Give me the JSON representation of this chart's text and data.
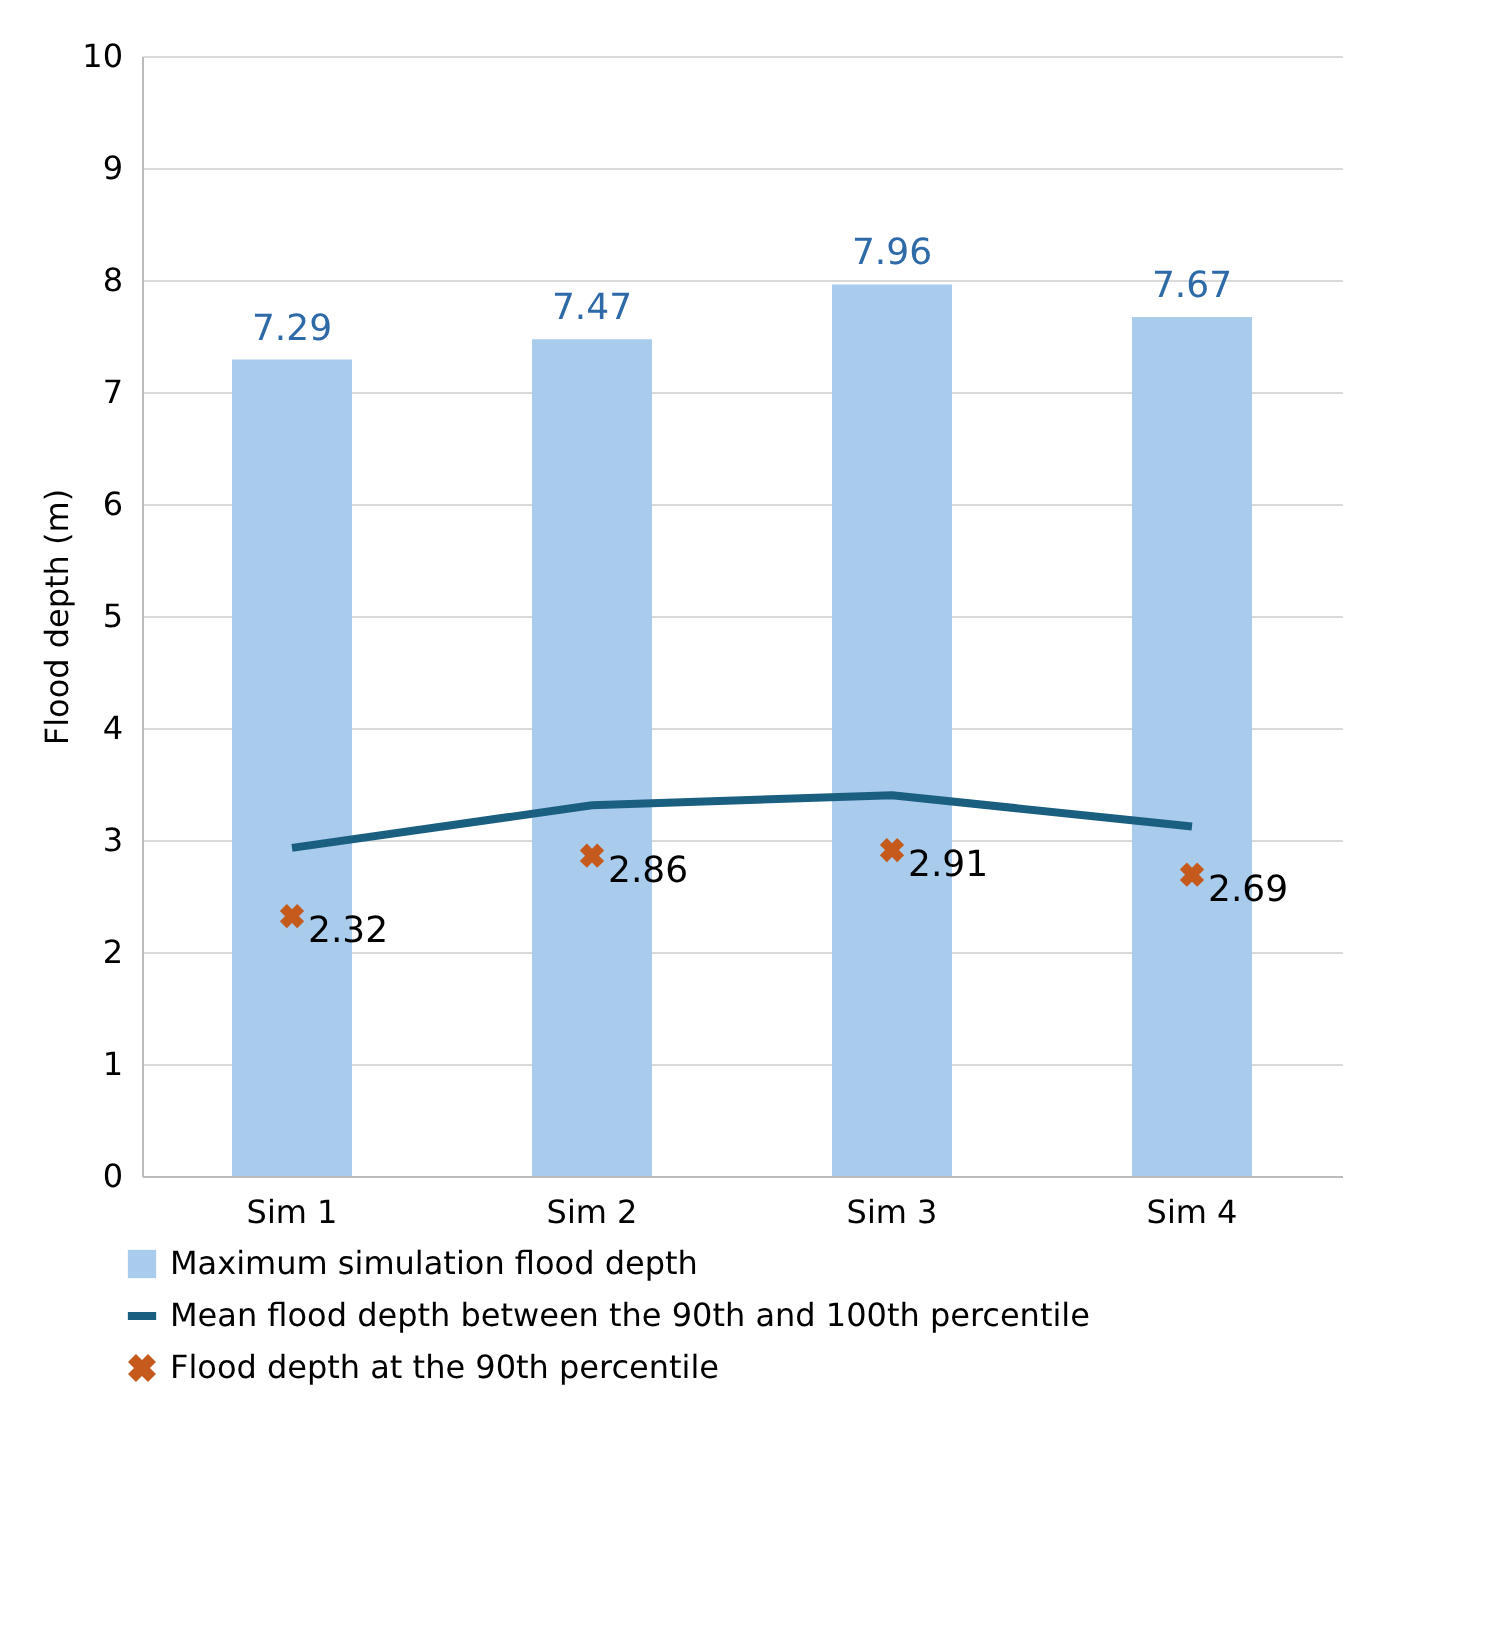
{
  "chart_data": {
    "type": "bar",
    "ylabel": "Flood depth (m)",
    "categories": [
      "Sim 1",
      "Sim 2",
      "Sim 3",
      "Sim 4"
    ],
    "series": [
      {
        "name": "Maximum simulation flood depth",
        "color": "#a9cbec",
        "values": [
          7.29,
          7.47,
          7.96,
          7.67
        ],
        "value_labels": [
          "7.29",
          "7.47",
          "7.96",
          "7.67"
        ]
      },
      {
        "name": "Mean flood depth between the 90th and 100th percentile",
        "type": "line",
        "color": "#1b5f80",
        "values": [
          2.93,
          3.31,
          3.4,
          3.12
        ]
      },
      {
        "name": "Flood depth at the 90th percentile",
        "type": "scatter",
        "color": "#c55a1c",
        "marker": "cross",
        "values": [
          2.32,
          2.86,
          2.91,
          2.69
        ],
        "value_labels": [
          "2.32",
          "2.86",
          "2.91",
          "2.69"
        ]
      }
    ],
    "ylim": [
      0,
      10
    ],
    "yticks": [
      0,
      1,
      2,
      3,
      4,
      5,
      6,
      7,
      8,
      9,
      10
    ],
    "grid": "y",
    "legend": "bottom"
  }
}
